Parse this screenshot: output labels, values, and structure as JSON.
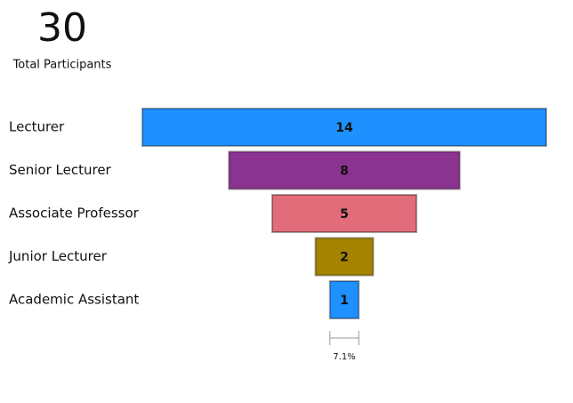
{
  "chart_data": {
    "type": "funnel",
    "total": 30,
    "total_label": "Total Participants",
    "categories": [
      "Lecturer",
      "Senior Lecturer",
      "Associate Professor",
      "Junior Lecturer",
      "Academic Assistant"
    ],
    "values": [
      14,
      8,
      5,
      2,
      1
    ],
    "colors": [
      "#1e90ff",
      "#8b3391",
      "#e26c79",
      "#a58300",
      "#1e90ff"
    ],
    "annotation": "7.1%"
  }
}
